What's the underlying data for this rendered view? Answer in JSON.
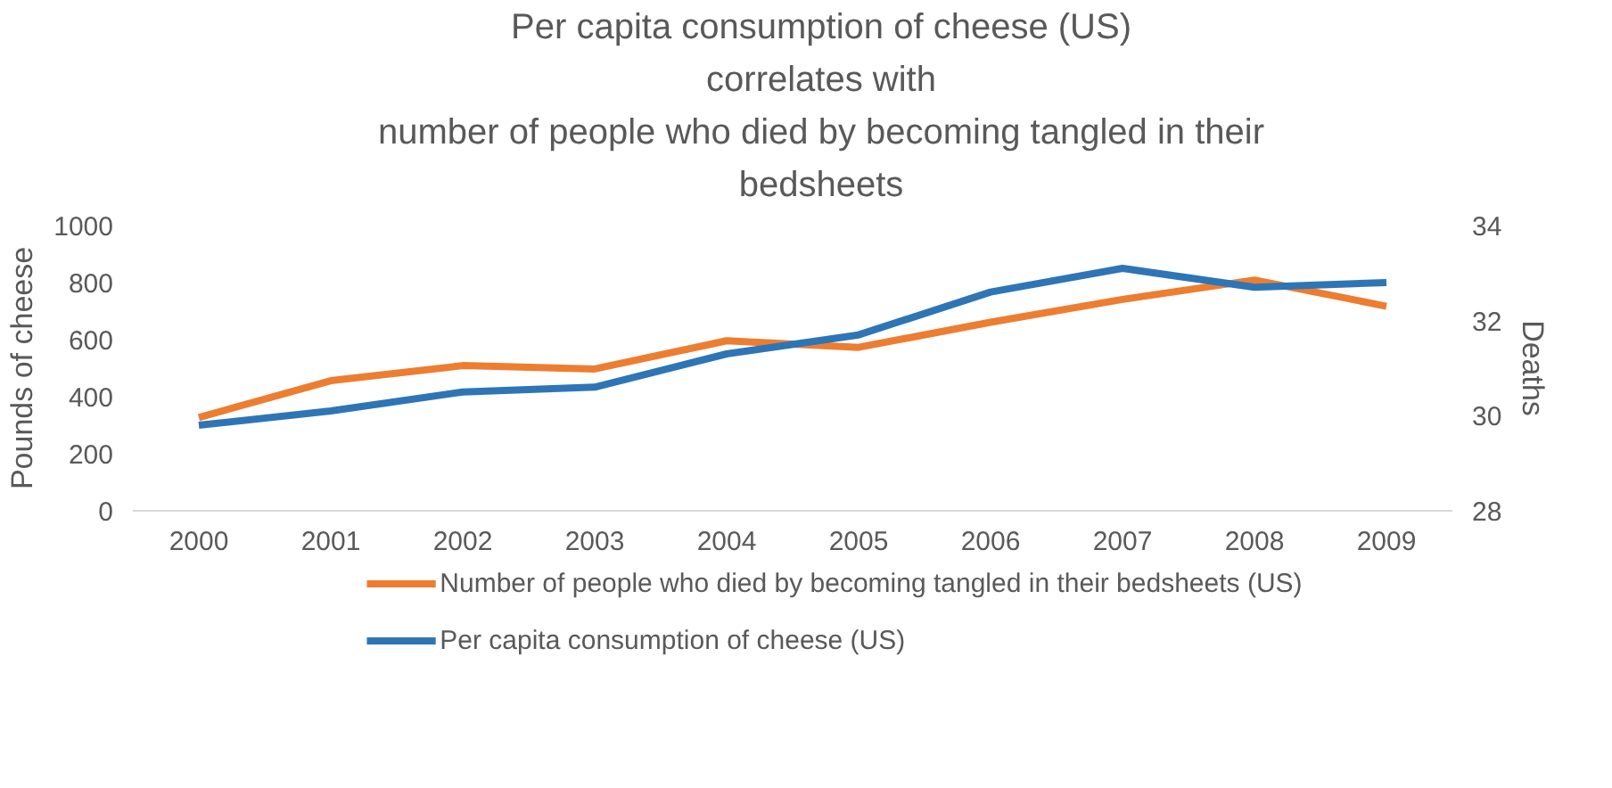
{
  "chart_data": {
    "type": "line",
    "title": "Per capita consumption of cheese (US)\ncorrelates with\nnumber of people who died by becoming tangled in their\nbedsheets",
    "ylabel": "Pounds of cheese",
    "y2label": "Deaths",
    "categories": [
      "2000",
      "2001",
      "2002",
      "2003",
      "2004",
      "2005",
      "2006",
      "2007",
      "2008",
      "2009"
    ],
    "series": [
      {
        "name": "Number of people who died by becoming tangled in their bedsheets (US)",
        "color": "#ed7d31",
        "values": [
          327,
          456,
          509,
          497,
          596,
          573,
          661,
          741,
          809,
          717
        ]
      },
      {
        "name": "Per capita consumption of cheese (US)",
        "color": "#2e75b6",
        "axis": "y2",
        "values": [
          29.8,
          30.1,
          30.5,
          30.6,
          31.3,
          31.7,
          32.6,
          33.1,
          32.7,
          32.8
        ]
      }
    ],
    "ylim": [
      0,
      1000
    ],
    "yticks": [
      0,
      200,
      400,
      600,
      800,
      1000
    ],
    "y2lim": [
      28,
      34
    ],
    "y2ticks": [
      28,
      30,
      32,
      34
    ],
    "grid": false,
    "legend": "bottom"
  }
}
